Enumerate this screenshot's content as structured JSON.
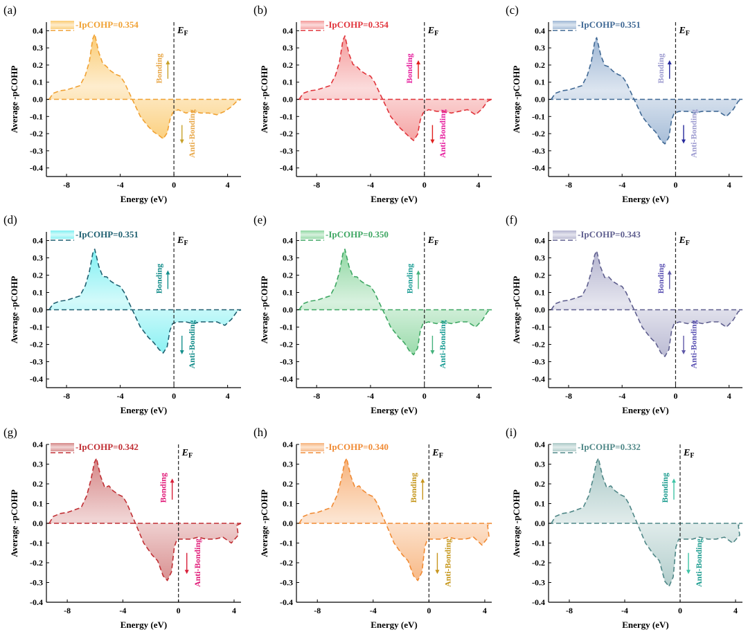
{
  "chart_data": [
    {
      "panel": "(a)",
      "type": "area",
      "legend": "-IpCOHP=0.354",
      "color": "#F0A133",
      "fill": "#FBCB72",
      "note_color": "#E8A84A",
      "arrow_color": "#C7A12A",
      "peak": 0.38,
      "dip": -0.23,
      "tail": [
        -0.06,
        -0.08,
        -0.07,
        -0.08,
        -0.08,
        -0.09,
        -0.07,
        -0.01
      ],
      "xmax": 5,
      "ymin": -0.45,
      "ymax": 0.45,
      "yticks": [
        -0.4,
        -0.3,
        -0.2,
        -0.1,
        0.0,
        0.1,
        0.2,
        0.3,
        0.4
      ],
      "xticks": [
        -8,
        -4,
        0,
        4
      ],
      "xlabel": "Energy (eV)",
      "ylabel": "Average -pCOHP",
      "ef_label": "E",
      "ef_sub": "F",
      "bonding": "Bonding",
      "antibonding": "Anti-Bonding"
    },
    {
      "panel": "(b)",
      "type": "area",
      "legend": "-IpCOHP=0.354",
      "color": "#E0333A",
      "fill": "#F49A9A",
      "note_color": "#E61F9E",
      "arrow_color": "#E0201E",
      "peak": 0.37,
      "dip": -0.24,
      "tail": [
        -0.06,
        -0.07,
        -0.07,
        -0.08,
        -0.07,
        -0.06,
        -0.09,
        -0.01
      ],
      "xmax": 5,
      "ymin": -0.45,
      "ymax": 0.45,
      "yticks": [
        -0.4,
        -0.3,
        -0.2,
        -0.1,
        0.0,
        0.1,
        0.2,
        0.3,
        0.4
      ],
      "xticks": [
        -8,
        -4,
        0,
        4
      ],
      "xlabel": "Energy (eV)",
      "ylabel": "Average -pCOHP",
      "ef_label": "E",
      "ef_sub": "F",
      "bonding": "Bonding",
      "antibonding": "Anti-Bonding"
    },
    {
      "panel": "(c)",
      "type": "area",
      "legend": "-IpCOHP=0.351",
      "color": "#3F6894",
      "fill": "#9DB6D4",
      "note_color": "#9D9BD0",
      "arrow_color": "#26299C",
      "peak": 0.36,
      "dip": -0.26,
      "tail": [
        -0.07,
        -0.07,
        -0.08,
        -0.07,
        -0.07,
        -0.07,
        -0.1,
        -0.01
      ],
      "xmax": 5,
      "ymin": -0.45,
      "ymax": 0.45,
      "yticks": [
        -0.4,
        -0.3,
        -0.2,
        -0.1,
        0.0,
        0.1,
        0.2,
        0.3,
        0.4
      ],
      "xticks": [
        -8,
        -4,
        0,
        4
      ],
      "xlabel": "Energy (eV)",
      "ylabel": "Average -pCOHP",
      "ef_label": "E",
      "ef_sub": "F",
      "bonding": "Bonding",
      "antibonding": "Anti-Bonding"
    },
    {
      "panel": "(d)",
      "type": "area",
      "legend": "-IpCOHP=0.351",
      "color": "#1E5F70",
      "fill": "#7FF0F2",
      "note_color": "#138C8A",
      "arrow_color": "#158F8C",
      "peak": 0.35,
      "dip": -0.25,
      "tail": [
        -0.07,
        -0.07,
        -0.08,
        -0.07,
        -0.07,
        -0.07,
        -0.09,
        -0.01
      ],
      "xmax": 5,
      "ymin": -0.45,
      "ymax": 0.45,
      "yticks": [
        -0.4,
        -0.3,
        -0.2,
        -0.1,
        0.0,
        0.1,
        0.2,
        0.3,
        0.4
      ],
      "xticks": [
        -8,
        -4,
        0,
        4
      ],
      "xlabel": "Energy (eV)",
      "ylabel": "Average -pCOHP",
      "ef_label": "E",
      "ef_sub": "F",
      "bonding": "Bonding",
      "antibonding": "Anti-Bonding"
    },
    {
      "panel": "(e)",
      "type": "area",
      "legend": "-IpCOHP=0.350",
      "color": "#3DA662",
      "fill": "#8FD7A2",
      "note_color": "#1A9C94",
      "arrow_color": "#44B27C",
      "peak": 0.35,
      "dip": -0.26,
      "tail": [
        -0.07,
        -0.08,
        -0.07,
        -0.08,
        -0.07,
        -0.07,
        -0.1,
        -0.01
      ],
      "xmax": 5,
      "ymin": -0.45,
      "ymax": 0.45,
      "yticks": [
        -0.4,
        -0.3,
        -0.2,
        -0.1,
        0.0,
        0.1,
        0.2,
        0.3,
        0.4
      ],
      "xticks": [
        -8,
        -4,
        0,
        4
      ],
      "xlabel": "Energy (eV)",
      "ylabel": "Average -pCOHP",
      "ef_label": "E",
      "ef_sub": "F",
      "bonding": "Bonding",
      "antibonding": "Anti-Bonding"
    },
    {
      "panel": "(f)",
      "type": "area",
      "legend": "-IpCOHP=0.343",
      "color": "#5E5E8E",
      "fill": "#B4B4CF",
      "note_color": "#5D54B4",
      "arrow_color": "#5E58A8",
      "peak": 0.34,
      "dip": -0.27,
      "tail": [
        -0.07,
        -0.08,
        -0.07,
        -0.08,
        -0.07,
        -0.07,
        -0.1,
        -0.01
      ],
      "xmax": 5,
      "ymin": -0.45,
      "ymax": 0.45,
      "yticks": [
        -0.4,
        -0.3,
        -0.2,
        -0.1,
        0.0,
        0.1,
        0.2,
        0.3,
        0.4
      ],
      "xticks": [
        -8,
        -4,
        0,
        4
      ],
      "xlabel": "Energy (eV)",
      "ylabel": "Average -pCOHP",
      "ef_label": "E",
      "ef_sub": "F",
      "bonding": "Bonding",
      "antibonding": "Anti-Bonding"
    },
    {
      "panel": "(g)",
      "type": "area",
      "legend": "-IpCOHP=0.342",
      "color": "#C02E33",
      "fill": "#D58585",
      "note_color": "#E01A78",
      "arrow_color": "#D8203A",
      "peak": 0.33,
      "dip": -0.29,
      "tail": [
        -0.08,
        -0.08,
        -0.07,
        -0.08,
        -0.08,
        -0.07,
        -0.1,
        -0.01
      ],
      "xmax": 4.5,
      "ymin": -0.4,
      "ymax": 0.4,
      "yticks": [
        -0.4,
        -0.3,
        -0.2,
        -0.1,
        0.0,
        0.1,
        0.2,
        0.3,
        0.4
      ],
      "xticks": [
        -8,
        -4,
        0,
        4
      ],
      "xlabel": "Energy (eV)",
      "ylabel": "Average -pCOHP",
      "ef_label": "E",
      "ef_sub": "F",
      "bonding": "Bonding",
      "antibonding": "Anti-Bonding"
    },
    {
      "panel": "(h)",
      "type": "area",
      "legend": "-IpCOHP=0.340",
      "color": "#F08A33",
      "fill": "#F7B27A",
      "note_color": "#C5961A",
      "arrow_color": "#C7951E",
      "peak": 0.33,
      "dip": -0.29,
      "tail": [
        -0.08,
        -0.08,
        -0.07,
        -0.08,
        -0.08,
        -0.07,
        -0.11,
        -0.01
      ],
      "xmax": 4.5,
      "ymin": -0.4,
      "ymax": 0.4,
      "yticks": [
        -0.4,
        -0.3,
        -0.2,
        -0.1,
        0.0,
        0.1,
        0.2,
        0.3,
        0.4
      ],
      "xticks": [
        -8,
        -4,
        0,
        4
      ],
      "xlabel": "Energy (eV)",
      "ylabel": "Average -pCOHP",
      "ef_label": "E",
      "ef_sub": "F",
      "bonding": "Bonding",
      "antibonding": "Anti-Bonding"
    },
    {
      "panel": "(i)",
      "type": "area",
      "legend": "-IpCOHP=0.332",
      "color": "#4F8787",
      "fill": "#A9C8C6",
      "note_color": "#1C9C8F",
      "arrow_color": "#3FC3A6",
      "peak": 0.33,
      "dip": -0.32,
      "tail": [
        -0.08,
        -0.08,
        -0.07,
        -0.08,
        -0.08,
        -0.07,
        -0.1,
        -0.01
      ],
      "xmax": 4.5,
      "ymin": -0.4,
      "ymax": 0.4,
      "yticks": [
        -0.4,
        -0.3,
        -0.2,
        -0.1,
        0.0,
        0.1,
        0.2,
        0.3,
        0.4
      ],
      "xticks": [
        -8,
        -4,
        0,
        4
      ],
      "xlabel": "Energy (eV)",
      "ylabel": "Average -pCOHP",
      "ef_label": "E",
      "ef_sub": "F",
      "bonding": "Bonding",
      "antibonding": "Anti-Bonding"
    }
  ]
}
